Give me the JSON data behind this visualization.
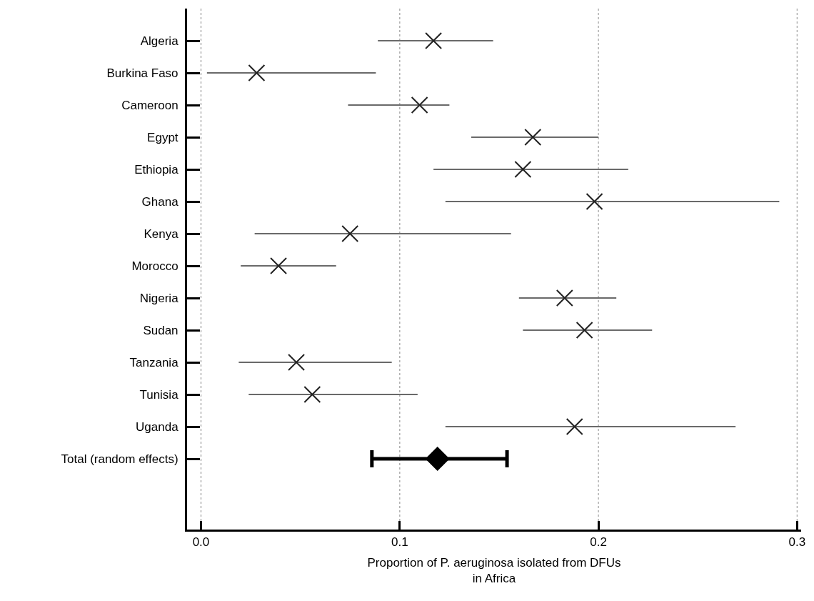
{
  "chart_data": {
    "type": "scatter",
    "orientation": "horizontal",
    "categories": [
      "Algeria",
      "Burkina Faso",
      "Cameroon",
      "Egypt",
      "Ethiopia",
      "Ghana",
      "Kenya",
      "Morocco",
      "Nigeria",
      "Sudan",
      "Tanzania",
      "Tunisia",
      "Uganda",
      "Total (random effects)"
    ],
    "xlabel": "Proportion of P. aeruginosa isolated from DFUs\nin Africa",
    "series": [
      {
        "marker": "cross",
        "color": "#222222",
        "values": [
          0.117,
          0.028,
          0.11,
          0.167,
          0.162,
          0.198,
          0.075,
          0.039,
          0.183,
          0.193,
          0.048,
          0.056,
          0.188,
          null
        ],
        "errors": [
          [
            0.089,
            0.147
          ],
          [
            0.003,
            0.088
          ],
          [
            0.074,
            0.125
          ],
          [
            0.136,
            0.2
          ],
          [
            0.117,
            0.215
          ],
          [
            0.123,
            0.291
          ],
          [
            0.027,
            0.156
          ],
          [
            0.02,
            0.068
          ],
          [
            0.16,
            0.209
          ],
          [
            0.162,
            0.227
          ],
          [
            0.019,
            0.096
          ],
          [
            0.024,
            0.109
          ],
          [
            0.123,
            0.269
          ],
          null
        ]
      },
      {
        "marker": "diamond",
        "color": "#000000",
        "values": [
          null,
          null,
          null,
          null,
          null,
          null,
          null,
          null,
          null,
          null,
          null,
          null,
          null,
          0.119
        ],
        "errors": [
          null,
          null,
          null,
          null,
          null,
          null,
          null,
          null,
          null,
          null,
          null,
          null,
          null,
          [
            0.086,
            0.154
          ]
        ]
      }
    ],
    "xlim": [
      -0.007,
      0.302
    ],
    "xticks": [
      {
        "value": 0,
        "label": "0.0"
      },
      0.1,
      0.2,
      0.3
    ],
    "grid": "x"
  }
}
